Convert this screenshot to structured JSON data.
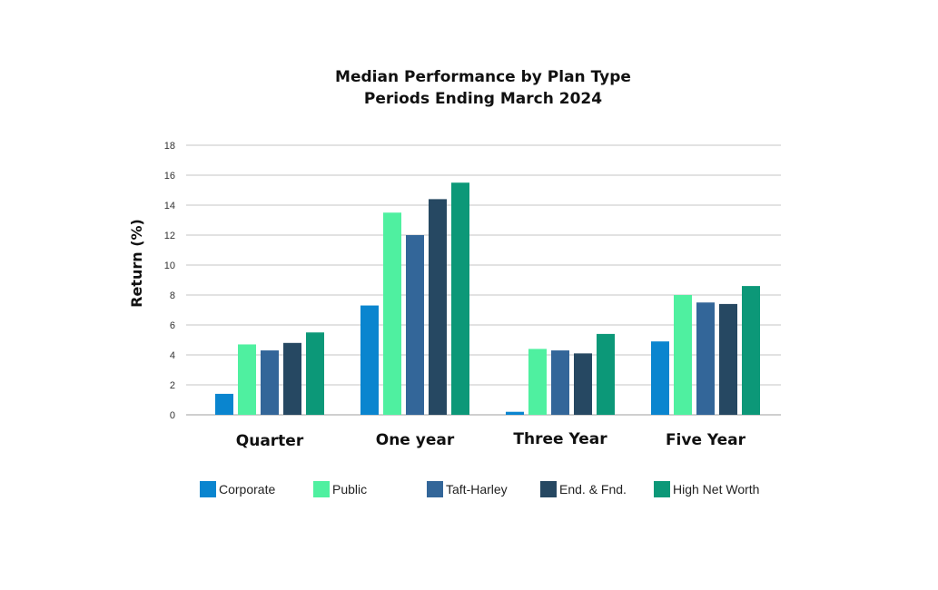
{
  "chart_data": {
    "type": "bar",
    "title": "Median Performance by Plan Type",
    "subtitle": "Periods Ending March 2024",
    "xlabel": "",
    "ylabel": "Return (%)",
    "ylim": [
      0,
      18
    ],
    "yticks": [
      "0",
      "2",
      "4",
      "6",
      "8",
      "10",
      "12",
      "14",
      "16",
      "18"
    ],
    "grid": true,
    "legend_position": "bottom",
    "categories": [
      "Quarter",
      "One year",
      "Three Year",
      "Five Year"
    ],
    "series": [
      {
        "name": "Corporate",
        "color": "#0A85CF",
        "values": [
          1.4,
          7.3,
          0.2,
          4.9
        ]
      },
      {
        "name": "Public",
        "color": "#4FF0A0",
        "values": [
          4.7,
          13.5,
          4.4,
          8.0
        ]
      },
      {
        "name": "Taft-Harley",
        "color": "#336699",
        "values": [
          4.3,
          12.0,
          4.3,
          7.5
        ]
      },
      {
        "name": "End. & Fnd.",
        "color": "#264862",
        "values": [
          4.8,
          14.4,
          4.1,
          7.4
        ]
      },
      {
        "name": "High Net Worth",
        "color": "#0C9878",
        "values": [
          5.5,
          15.5,
          5.4,
          8.6
        ]
      }
    ]
  }
}
